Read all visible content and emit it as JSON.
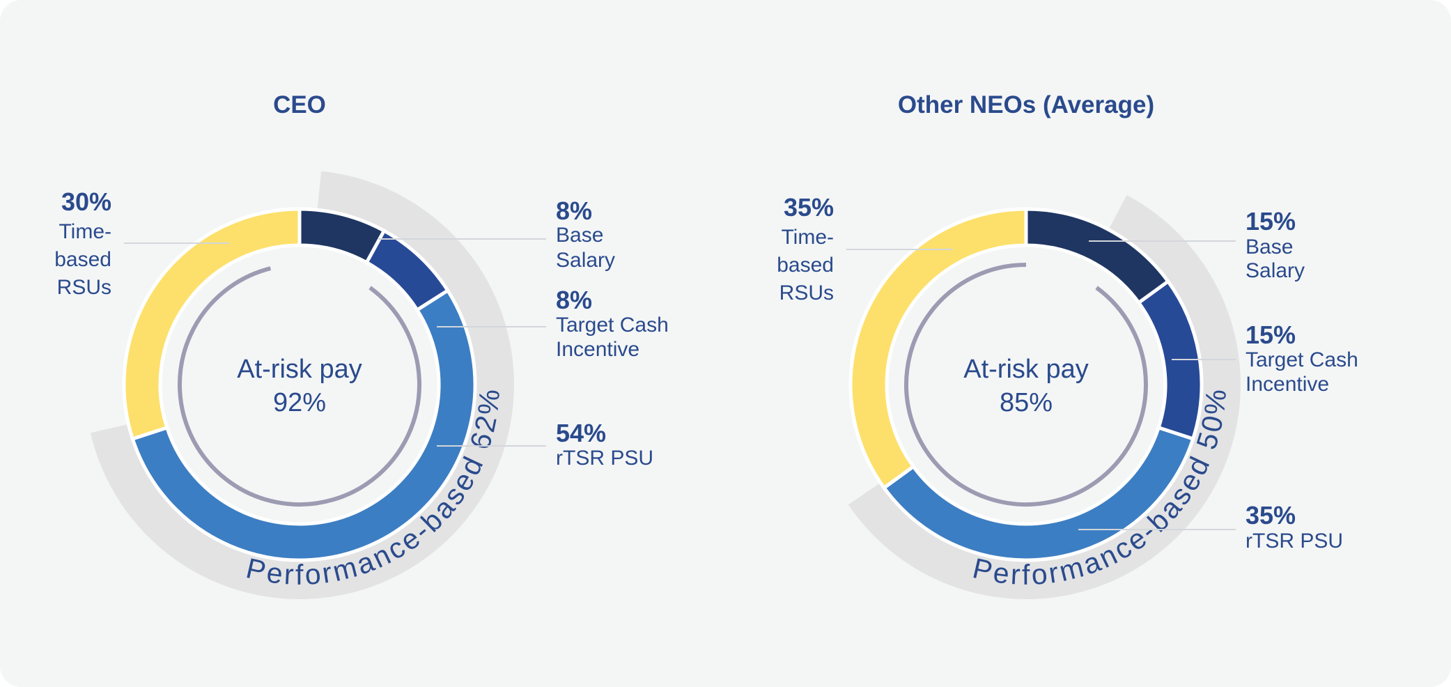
{
  "colors": {
    "background": "#f4f6f6",
    "text": "#2a4a8c",
    "inner_arc": "#9b9bb2",
    "outer_band": "#e3e3e4",
    "leader": "#d3d6da",
    "separator": "#ffffff"
  },
  "chart_data": [
    {
      "type": "donut",
      "title": "CEO",
      "center_label": "At-risk pay",
      "center_value": "92%",
      "performance_band": {
        "label": "Performance-based 62%",
        "value": 62
      },
      "at_risk_arc": {
        "value": 92
      },
      "slices": [
        {
          "name": "Base Salary",
          "percent_label": "8%",
          "label_lines": [
            "Base",
            "Salary"
          ],
          "value": 8,
          "color": "#1f3663",
          "label_side": "right"
        },
        {
          "name": "Target Cash Incentive",
          "percent_label": "8%",
          "label_lines": [
            "Target Cash",
            "Incentive"
          ],
          "value": 8,
          "color": "#274a97",
          "label_side": "right"
        },
        {
          "name": "rTSR PSU",
          "percent_label": "54%",
          "label_lines": [
            "rTSR PSU"
          ],
          "value": 54,
          "color": "#3c7ec3",
          "label_side": "right"
        },
        {
          "name": "Time-based RSUs",
          "percent_label": "30%",
          "label_lines": [
            "Time-",
            "based",
            "RSUs"
          ],
          "value": 30,
          "color": "#fde06b",
          "label_side": "left"
        }
      ]
    },
    {
      "type": "donut",
      "title": "Other NEOs (Average)",
      "center_label": "At-risk pay",
      "center_value": "85%",
      "performance_band": {
        "label": "Performance-based 50%",
        "value": 50
      },
      "at_risk_arc": {
        "value": 85
      },
      "slices": [
        {
          "name": "Base Salary",
          "percent_label": "15%",
          "label_lines": [
            "Base",
            "Salary"
          ],
          "value": 15,
          "color": "#1f3663",
          "label_side": "right"
        },
        {
          "name": "Target Cash Incentive",
          "percent_label": "15%",
          "label_lines": [
            "Target Cash",
            "Incentive"
          ],
          "value": 15,
          "color": "#274a97",
          "label_side": "right"
        },
        {
          "name": "rTSR PSU",
          "percent_label": "35%",
          "label_lines": [
            "rTSR PSU"
          ],
          "value": 35,
          "color": "#3c7ec3",
          "label_side": "right"
        },
        {
          "name": "Time-based RSUs",
          "percent_label": "35%",
          "label_lines": [
            "Time-",
            "based",
            "RSUs"
          ],
          "value": 35,
          "color": "#fde06b",
          "label_side": "left"
        }
      ]
    }
  ]
}
